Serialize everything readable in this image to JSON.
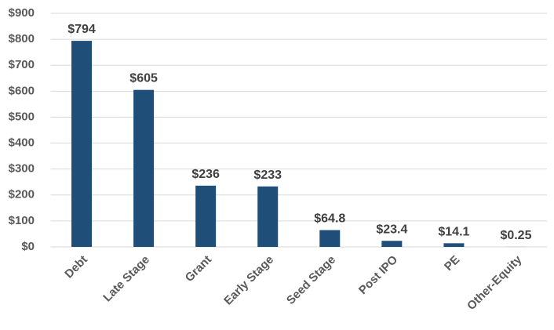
{
  "chart_data": {
    "type": "bar",
    "categories": [
      "Debt",
      "Late Stage",
      "Grant",
      "Early Stage",
      "Seed Stage",
      "Post IPO",
      "PE",
      "Other-Equity"
    ],
    "values": [
      794,
      605,
      236,
      233,
      64.8,
      23.4,
      14.1,
      0.25
    ],
    "value_labels": [
      "$794",
      "$605",
      "$236",
      "$233",
      "$64.8",
      "$23.4",
      "$14.1",
      "$0.25"
    ],
    "color": "#1f4e79",
    "ylim": [
      0,
      900
    ],
    "yticks": [
      {
        "value": 0,
        "label": "$0"
      },
      {
        "value": 100,
        "label": "$100"
      },
      {
        "value": 200,
        "label": "$200"
      },
      {
        "value": 300,
        "label": "$300"
      },
      {
        "value": 400,
        "label": "$400"
      },
      {
        "value": 500,
        "label": "$500"
      },
      {
        "value": 600,
        "label": "$600"
      },
      {
        "value": 700,
        "label": "$700"
      },
      {
        "value": 800,
        "label": "$800"
      },
      {
        "value": 900,
        "label": "$900"
      }
    ],
    "grid": true
  }
}
